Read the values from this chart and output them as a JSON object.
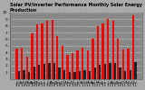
{
  "title": "Solar PV/Inverter Performance Monthly Solar Energy Production",
  "title_fontsize": 3.5,
  "months": [
    "Jan\n'10",
    "Feb\n'10",
    "Mar\n'10",
    "Apr\n'10",
    "May\n'10",
    "Jun\n'10",
    "Jul\n'10",
    "Aug\n'10",
    "Sep\n'10",
    "Oct\n'10",
    "Nov\n'10",
    "Dec\n'10",
    "Jan\n'11",
    "Feb\n'11",
    "Mar\n'11",
    "Apr\n'11",
    "May\n'11",
    "Jun\n'11",
    "Jul\n'11",
    "Aug\n'11",
    "Sep\n'11",
    "Oct\n'11",
    "Nov\n'11",
    "Dec\n'11"
  ],
  "red_values": [
    215,
    220,
    155,
    320,
    385,
    395,
    415,
    420,
    305,
    235,
    170,
    180,
    200,
    220,
    200,
    285,
    375,
    390,
    425,
    415,
    285,
    210,
    215,
    450
  ],
  "black_values": [
    58,
    62,
    48,
    88,
    102,
    106,
    112,
    114,
    82,
    63,
    48,
    50,
    56,
    61,
    55,
    78,
    102,
    106,
    116,
    112,
    78,
    58,
    60,
    122
  ],
  "red_color": "#ff0000",
  "black_color": "#222222",
  "bg_color": "#aaaaaa",
  "plot_bg": "#888888",
  "grid_color": "#ffffff",
  "ylim": [
    0,
    470
  ],
  "ytick_labels": [
    "1",
    "2",
    "3",
    "4",
    "5",
    "6",
    "7",
    "8",
    "9",
    "10"
  ],
  "yticks": [
    47,
    94,
    141,
    188,
    235,
    282,
    329,
    376,
    423,
    470
  ],
  "ylabel_fontsize": 3.2,
  "xlabel_fontsize": 2.8,
  "bar_width": 0.42
}
